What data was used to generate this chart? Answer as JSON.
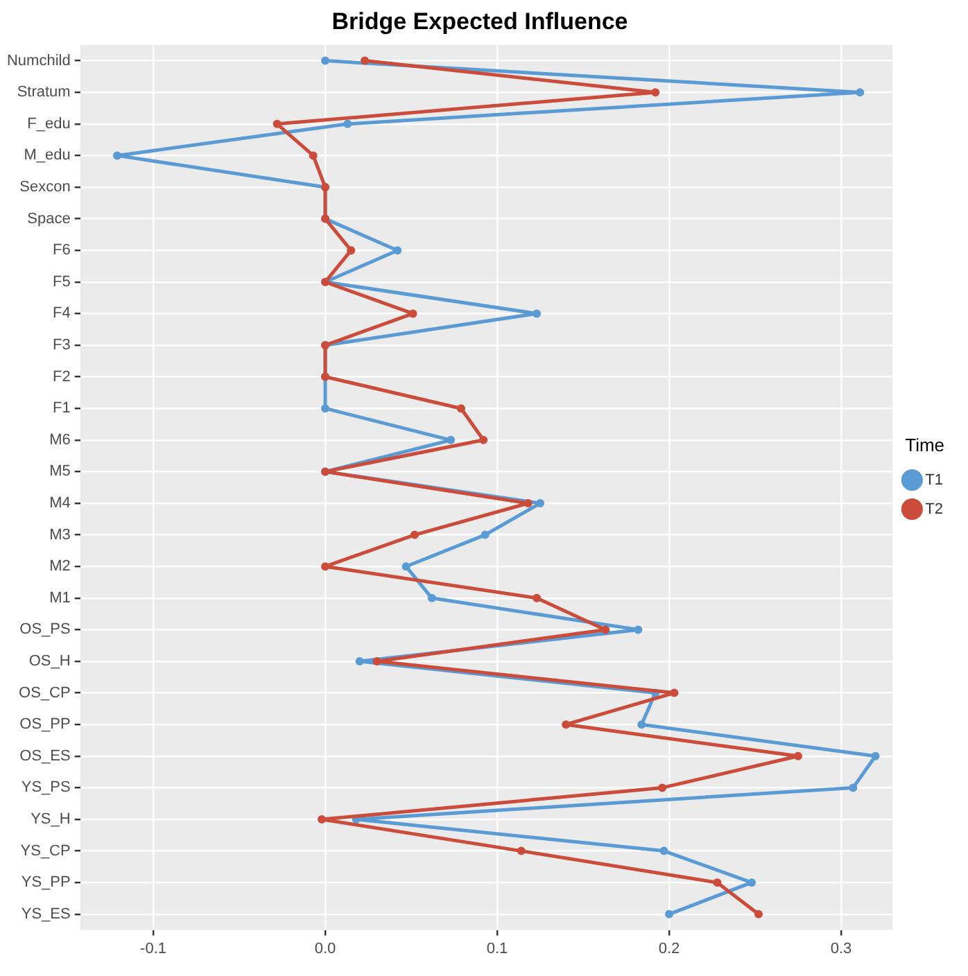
{
  "chart_data": {
    "type": "line",
    "orientation": "horizontal",
    "title": "Bridge Expected Influence",
    "legend_title": "Time",
    "legend": "right",
    "grid": true,
    "marker": "circle",
    "line_style": "solid",
    "categories": [
      "Numchild",
      "Stratum",
      "F_edu",
      "M_edu",
      "Sexcon",
      "Space",
      "F6",
      "F5",
      "F4",
      "F3",
      "F2",
      "F1",
      "M6",
      "M5",
      "M4",
      "M3",
      "M2",
      "M1",
      "OS_PS",
      "OS_H",
      "OS_CP",
      "OS_PP",
      "OS_ES",
      "YS_PS",
      "YS_H",
      "YS_CP",
      "YS_PP",
      "YS_ES"
    ],
    "xlim": [
      -0.1425,
      0.33
    ],
    "xticks": [
      {
        "value": -0.1,
        "label": "-0.1"
      },
      {
        "value": 0,
        "label": "0.0"
      },
      {
        "value": 0.1,
        "label": "0.1"
      },
      {
        "value": 0.2,
        "label": "0.2"
      },
      {
        "value": 0.3,
        "label": "0.3"
      }
    ],
    "series": [
      {
        "name": "T1",
        "color": "#5b9bd5",
        "values": [
          0,
          0.311,
          0.013,
          -0.121,
          0,
          0,
          0.042,
          0,
          0.123,
          0,
          0,
          0,
          0.073,
          0,
          0.125,
          0.093,
          0.047,
          0.062,
          0.182,
          0.02,
          0.192,
          0.184,
          0.32,
          0.307,
          0.018,
          0.197,
          0.248,
          0.2
        ]
      },
      {
        "name": "T2",
        "color": "#cc4c3b",
        "values": [
          0.023,
          0.192,
          -0.028,
          -0.007,
          0,
          0,
          0.015,
          0,
          0.051,
          0,
          0,
          0.079,
          0.092,
          0,
          0.118,
          0.052,
          0,
          0.123,
          0.163,
          0.03,
          0.203,
          0.14,
          0.275,
          0.196,
          -0.002,
          0.114,
          0.228,
          0.252
        ]
      }
    ]
  }
}
